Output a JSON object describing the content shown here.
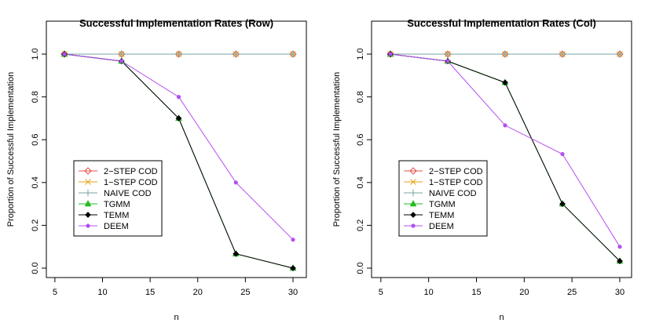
{
  "chart_data": [
    {
      "type": "line",
      "title": "Successful Implementation Rates (Row)",
      "xlabel": "n",
      "ylabel": "Proportion of Successful Implementation",
      "x": [
        6,
        12,
        18,
        24,
        30
      ],
      "xlim": [
        5,
        30
      ],
      "ylim": [
        0,
        1
      ],
      "xticks": [
        5,
        10,
        15,
        20,
        25,
        30
      ],
      "yticks": [
        "0.0",
        "0.2",
        "0.4",
        "0.6",
        "0.8",
        "1.0"
      ],
      "legend_position": "lower-left",
      "series": [
        {
          "name": "2−STEP COD",
          "color": "#e8514a",
          "marker": "diamond-open",
          "values": [
            1,
            1,
            1,
            1,
            1
          ]
        },
        {
          "name": "1−STEP COD",
          "color": "#e3a51e",
          "marker": "x",
          "values": [
            1,
            1,
            1,
            1,
            1
          ]
        },
        {
          "name": "NAIVE COD",
          "color": "#79a3a3",
          "marker": "plus",
          "values": [
            1,
            1,
            1,
            1,
            1
          ]
        },
        {
          "name": "TGMM",
          "color": "#22bb22",
          "marker": "triangle",
          "values": [
            1,
            0.967,
            0.7,
            0.067,
            0.0
          ]
        },
        {
          "name": "TEMM",
          "color": "#000000",
          "marker": "diamond",
          "values": [
            1,
            0.967,
            0.7,
            0.067,
            0.0
          ]
        },
        {
          "name": "DEEM",
          "color": "#b54ef0",
          "marker": "dot",
          "values": [
            1,
            0.967,
            0.8,
            0.4,
            0.133
          ]
        }
      ]
    },
    {
      "type": "line",
      "title": "Successful Implementation Rates (Col)",
      "xlabel": "n",
      "ylabel": "Proportion of Successful Implementation",
      "x": [
        6,
        12,
        18,
        24,
        30
      ],
      "xlim": [
        5,
        30
      ],
      "ylim": [
        0,
        1
      ],
      "xticks": [
        5,
        10,
        15,
        20,
        25,
        30
      ],
      "yticks": [
        "0.0",
        "0.2",
        "0.4",
        "0.6",
        "0.8",
        "1.0"
      ],
      "legend_position": "lower-left",
      "series": [
        {
          "name": "2−STEP COD",
          "color": "#e8514a",
          "marker": "diamond-open",
          "values": [
            1,
            1,
            1,
            1,
            1
          ]
        },
        {
          "name": "1−STEP COD",
          "color": "#e3a51e",
          "marker": "x",
          "values": [
            1,
            1,
            1,
            1,
            1
          ]
        },
        {
          "name": "NAIVE COD",
          "color": "#79a3a3",
          "marker": "plus",
          "values": [
            1,
            1,
            1,
            1,
            1
          ]
        },
        {
          "name": "TGMM",
          "color": "#22bb22",
          "marker": "triangle",
          "values": [
            1,
            0.967,
            0.867,
            0.3,
            0.033
          ]
        },
        {
          "name": "TEMM",
          "color": "#000000",
          "marker": "diamond",
          "values": [
            1,
            0.967,
            0.867,
            0.3,
            0.033
          ]
        },
        {
          "name": "DEEM",
          "color": "#b54ef0",
          "marker": "dot",
          "values": [
            1,
            0.967,
            0.667,
            0.533,
            0.1
          ]
        }
      ]
    }
  ]
}
